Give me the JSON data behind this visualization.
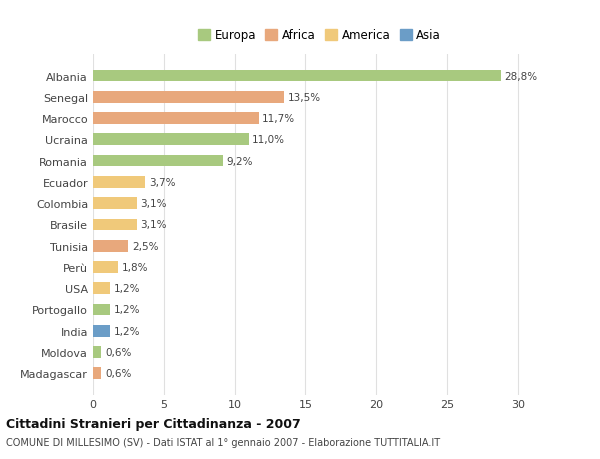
{
  "countries": [
    "Albania",
    "Senegal",
    "Marocco",
    "Ucraina",
    "Romania",
    "Ecuador",
    "Colombia",
    "Brasile",
    "Tunisia",
    "Perù",
    "USA",
    "Portogallo",
    "India",
    "Moldova",
    "Madagascar"
  ],
  "values": [
    28.8,
    13.5,
    11.7,
    11.0,
    9.2,
    3.7,
    3.1,
    3.1,
    2.5,
    1.8,
    1.2,
    1.2,
    1.2,
    0.6,
    0.6
  ],
  "labels": [
    "28,8%",
    "13,5%",
    "11,7%",
    "11,0%",
    "9,2%",
    "3,7%",
    "3,1%",
    "3,1%",
    "2,5%",
    "1,8%",
    "1,2%",
    "1,2%",
    "1,2%",
    "0,6%",
    "0,6%"
  ],
  "continents": [
    "Europa",
    "Africa",
    "Africa",
    "Europa",
    "Europa",
    "America",
    "America",
    "America",
    "Africa",
    "America",
    "America",
    "Europa",
    "Asia",
    "Europa",
    "Africa"
  ],
  "colors": {
    "Europa": "#a8c97f",
    "Africa": "#e8a87c",
    "America": "#f0c97a",
    "Asia": "#6b9dc7"
  },
  "title": "Cittadini Stranieri per Cittadinanza - 2007",
  "subtitle": "COMUNE DI MILLESIMO (SV) - Dati ISTAT al 1° gennaio 2007 - Elaborazione TUTTITALIA.IT",
  "xlim": [
    0,
    32
  ],
  "xticks": [
    0,
    5,
    10,
    15,
    20,
    25,
    30
  ],
  "bg_color": "#ffffff",
  "grid_color": "#e0e0e0",
  "legend_order": [
    "Europa",
    "Africa",
    "America",
    "Asia"
  ]
}
